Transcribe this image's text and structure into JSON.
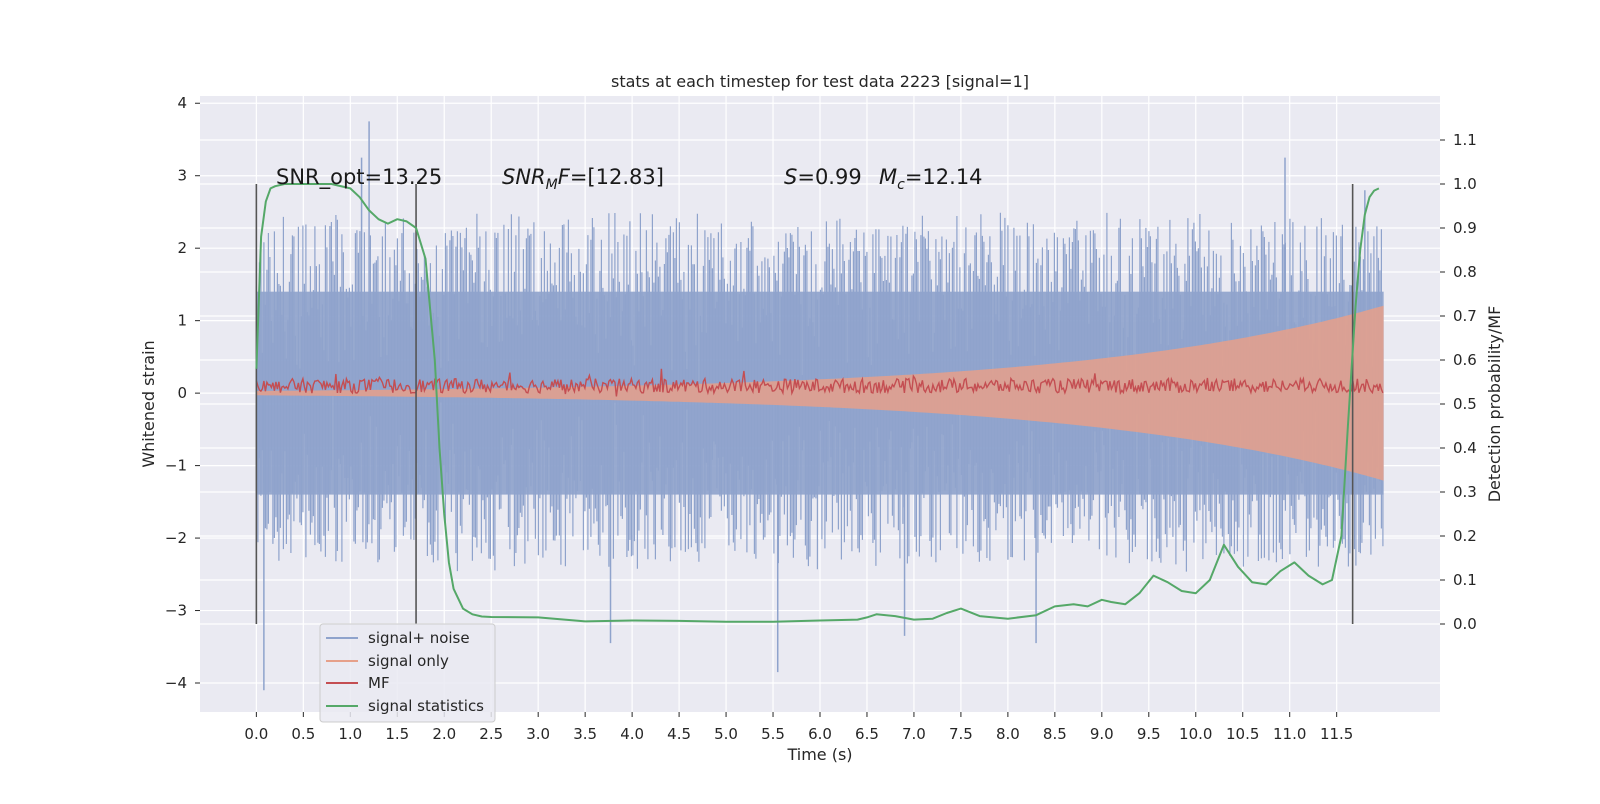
{
  "chart_data": {
    "type": "line",
    "title": "stats at each timestep for test data 2223 [signal=1]",
    "xlabel": "Time (s)",
    "ylabel": "Whitened strain",
    "ylabel_right": "Detection probability/MF",
    "xlim": [
      -0.6,
      12.6
    ],
    "ylim": [
      -4.4,
      4.1
    ],
    "ylim_right": [
      -0.2,
      1.2
    ],
    "xticks": [
      "0.0",
      "0.5",
      "1.0",
      "1.5",
      "2.0",
      "2.5",
      "3.0",
      "3.5",
      "4.0",
      "4.5",
      "5.0",
      "5.5",
      "6.0",
      "6.5",
      "7.0",
      "7.5",
      "8.0",
      "8.5",
      "9.0",
      "9.5",
      "10.0",
      "10.5",
      "11.0",
      "11.5"
    ],
    "yticks": [
      "4",
      "3",
      "2",
      "1",
      "0",
      "−1",
      "−2",
      "−3",
      "−4"
    ],
    "yticks_right": [
      "1.1",
      "1.0",
      "0.9",
      "0.8",
      "0.7",
      "0.6",
      "0.5",
      "0.4",
      "0.3",
      "0.2",
      "0.1",
      "0.0"
    ],
    "grid": true,
    "legend_position": "lower-left",
    "vertical_markers_x": [
      0.0,
      1.7,
      11.67
    ],
    "annotations": {
      "snr_opt": "SNR_opt=13.25",
      "snr_mf_italic": "SNR",
      "snr_mf_sub": "M",
      "snr_mf_tail_italic": "F",
      "snr_mf_value": "=[12.83]",
      "s_italic": "S",
      "s_value": "=0.99",
      "mc_italic": "M",
      "mc_sub": "c",
      "mc_value": "=12.14"
    },
    "series": [
      {
        "name": "signal+ noise",
        "color": "#8fa3cc",
        "axis": "left",
        "x_range": [
          0.0,
          12.0
        ],
        "envelope_typical": [
          -1.4,
          1.4
        ],
        "peaks": [
          {
            "x": 0.08,
            "y": -4.1
          },
          {
            "x": 1.2,
            "y": 3.75
          },
          {
            "x": 1.12,
            "y": 3.25
          },
          {
            "x": 5.55,
            "y": -3.85
          },
          {
            "x": 3.77,
            "y": -3.45
          },
          {
            "x": 10.95,
            "y": 3.25
          },
          {
            "x": 8.3,
            "y": -3.45
          },
          {
            "x": 6.9,
            "y": -3.35
          },
          {
            "x": 11.8,
            "y": 2.8
          }
        ]
      },
      {
        "name": "signal only",
        "color": "#e6a08a",
        "axis": "left",
        "x_range": [
          0.0,
          12.0
        ],
        "amplitude_start": 0.03,
        "amplitude_at_11_7": 1.1
      },
      {
        "name": "MF",
        "color": "#c44e52",
        "axis": "left",
        "x_range": [
          0.0,
          12.0
        ],
        "center": 0.1,
        "spread": 0.1
      },
      {
        "name": "signal statistics",
        "color": "#55a868",
        "axis": "right",
        "x": [
          0.0,
          0.05,
          0.1,
          0.15,
          0.2,
          0.3,
          0.5,
          0.8,
          1.0,
          1.1,
          1.2,
          1.3,
          1.4,
          1.5,
          1.6,
          1.7,
          1.8,
          1.9,
          1.95,
          2.0,
          2.05,
          2.1,
          2.2,
          2.3,
          2.4,
          2.5,
          3.0,
          3.5,
          4.0,
          4.5,
          5.0,
          5.5,
          6.0,
          6.4,
          6.5,
          6.6,
          6.8,
          7.0,
          7.2,
          7.35,
          7.5,
          7.7,
          8.0,
          8.3,
          8.5,
          8.7,
          8.85,
          9.0,
          9.1,
          9.25,
          9.4,
          9.55,
          9.7,
          9.85,
          10.0,
          10.15,
          10.3,
          10.45,
          10.6,
          10.75,
          10.9,
          11.05,
          11.2,
          11.35,
          11.45,
          11.55,
          11.62,
          11.7,
          11.75,
          11.8,
          11.85,
          11.9,
          11.95
        ],
        "y": [
          0.58,
          0.88,
          0.96,
          0.99,
          0.995,
          1.0,
          1.0,
          1.0,
          0.99,
          0.97,
          0.94,
          0.92,
          0.91,
          0.92,
          0.915,
          0.9,
          0.83,
          0.6,
          0.4,
          0.25,
          0.14,
          0.08,
          0.035,
          0.022,
          0.017,
          0.016,
          0.015,
          0.006,
          0.008,
          0.007,
          0.005,
          0.005,
          0.008,
          0.01,
          0.015,
          0.022,
          0.018,
          0.01,
          0.012,
          0.025,
          0.035,
          0.018,
          0.012,
          0.02,
          0.04,
          0.045,
          0.04,
          0.055,
          0.05,
          0.045,
          0.07,
          0.11,
          0.095,
          0.075,
          0.07,
          0.1,
          0.18,
          0.13,
          0.095,
          0.09,
          0.12,
          0.14,
          0.11,
          0.09,
          0.1,
          0.2,
          0.45,
          0.72,
          0.85,
          0.93,
          0.97,
          0.985,
          0.99
        ]
      }
    ]
  }
}
